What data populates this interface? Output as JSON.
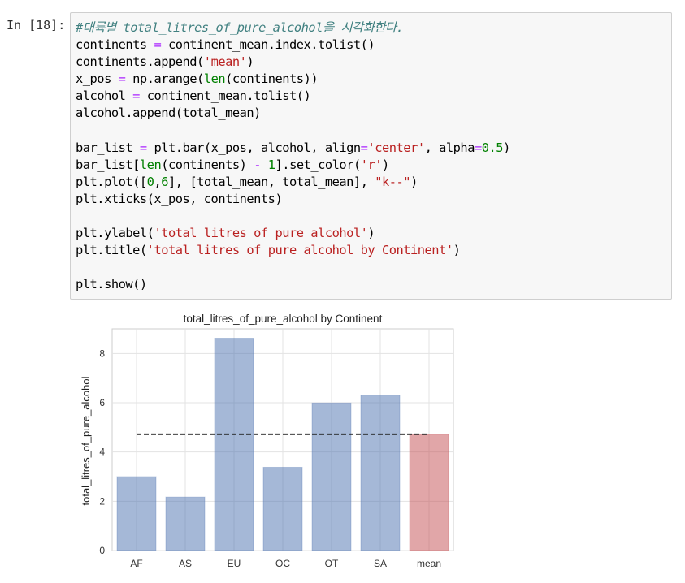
{
  "cell": {
    "prompt": "In [18]:",
    "code_lines": [
      [
        {
          "t": "#대륙별 total_litres_of_pure_alcohol을 시각화한다.",
          "c": "c"
        }
      ],
      [
        {
          "t": "continents ",
          "c": ""
        },
        {
          "t": "=",
          "c": "o"
        },
        {
          "t": " continent_mean.index.tolist()",
          "c": ""
        }
      ],
      [
        {
          "t": "continents.append(",
          "c": ""
        },
        {
          "t": "'mean'",
          "c": "s"
        },
        {
          "t": ")",
          "c": ""
        }
      ],
      [
        {
          "t": "x_pos ",
          "c": ""
        },
        {
          "t": "=",
          "c": "o"
        },
        {
          "t": " np.arange(",
          "c": ""
        },
        {
          "t": "len",
          "c": "b"
        },
        {
          "t": "(continents))",
          "c": ""
        }
      ],
      [
        {
          "t": "alcohol ",
          "c": ""
        },
        {
          "t": "=",
          "c": "o"
        },
        {
          "t": " continent_mean.tolist()",
          "c": ""
        }
      ],
      [
        {
          "t": "alcohol.append(total_mean)",
          "c": ""
        }
      ],
      [
        {
          "t": "",
          "c": ""
        }
      ],
      [
        {
          "t": "bar_list ",
          "c": ""
        },
        {
          "t": "=",
          "c": "o"
        },
        {
          "t": " plt.bar(x_pos, alcohol, align",
          "c": ""
        },
        {
          "t": "=",
          "c": "o"
        },
        {
          "t": "'center'",
          "c": "s"
        },
        {
          "t": ", alpha",
          "c": ""
        },
        {
          "t": "=",
          "c": "o"
        },
        {
          "t": "0.5",
          "c": "n"
        },
        {
          "t": ")",
          "c": ""
        }
      ],
      [
        {
          "t": "bar_list[",
          "c": ""
        },
        {
          "t": "len",
          "c": "b"
        },
        {
          "t": "(continents) ",
          "c": ""
        },
        {
          "t": "-",
          "c": "o"
        },
        {
          "t": " ",
          "c": ""
        },
        {
          "t": "1",
          "c": "n"
        },
        {
          "t": "].set_color(",
          "c": ""
        },
        {
          "t": "'r'",
          "c": "s"
        },
        {
          "t": ")",
          "c": ""
        }
      ],
      [
        {
          "t": "plt.plot([",
          "c": ""
        },
        {
          "t": "0",
          "c": "n"
        },
        {
          "t": ",",
          "c": ""
        },
        {
          "t": "6",
          "c": "n"
        },
        {
          "t": "], [total_mean, total_mean], ",
          "c": ""
        },
        {
          "t": "\"k--\"",
          "c": "s"
        },
        {
          "t": ")",
          "c": ""
        }
      ],
      [
        {
          "t": "plt.xticks(x_pos, continents)",
          "c": ""
        }
      ],
      [
        {
          "t": "",
          "c": ""
        }
      ],
      [
        {
          "t": "plt.ylabel(",
          "c": ""
        },
        {
          "t": "'total_litres_of_pure_alcohol'",
          "c": "s"
        },
        {
          "t": ")",
          "c": ""
        }
      ],
      [
        {
          "t": "plt.title(",
          "c": ""
        },
        {
          "t": "'total_litres_of_pure_alcohol by Continent'",
          "c": "s"
        },
        {
          "t": ")",
          "c": ""
        }
      ],
      [
        {
          "t": "",
          "c": ""
        }
      ],
      [
        {
          "t": "plt.show()",
          "c": ""
        }
      ]
    ]
  },
  "chart_data": {
    "type": "bar",
    "title": "total_litres_of_pure_alcohol by Continent",
    "xlabel": "",
    "ylabel": "total_litres_of_pure_alcohol",
    "categories": [
      "AF",
      "AS",
      "EU",
      "OC",
      "OT",
      "SA",
      "mean"
    ],
    "values": [
      3.0,
      2.17,
      8.62,
      3.38,
      5.99,
      6.31,
      4.72
    ],
    "bar_colors": [
      "#4c72b0",
      "#4c72b0",
      "#4c72b0",
      "#4c72b0",
      "#4c72b0",
      "#4c72b0",
      "#c44e52"
    ],
    "alpha": 0.5,
    "reference_line": {
      "x": [
        0,
        6
      ],
      "y": 4.72,
      "style": "k--"
    },
    "ylim": [
      0,
      9
    ],
    "yticks": [
      0,
      2,
      4,
      6,
      8
    ],
    "grid": true
  }
}
